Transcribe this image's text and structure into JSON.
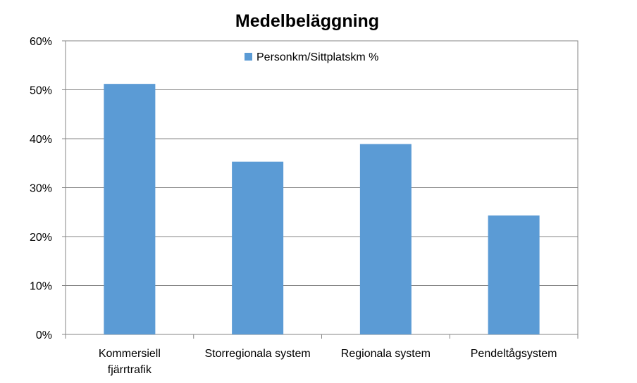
{
  "chart_data": {
    "type": "bar",
    "title": "Medelbeläggning",
    "categories": [
      "Kommersiell fjärrtrafik",
      "Storregionala system",
      "Regionala system",
      "Pendeltågsystem"
    ],
    "category_lines": [
      [
        "Kommersiell",
        "fjärrtrafik"
      ],
      [
        "Storregionala system"
      ],
      [
        "Regionala system"
      ],
      [
        "Pendeltågsystem"
      ]
    ],
    "series": [
      {
        "name": "Personkm/Sittplatskm %",
        "values": [
          51.2,
          35.3,
          38.9,
          24.3
        ],
        "color": "#5b9bd5"
      }
    ],
    "ylim": [
      0,
      60
    ],
    "yticks": [
      0,
      10,
      20,
      30,
      40,
      50,
      60
    ],
    "ytick_labels": [
      "0%",
      "10%",
      "20%",
      "30%",
      "40%",
      "50%",
      "60%"
    ],
    "xlabel": "",
    "ylabel": "",
    "grid": true,
    "legend_position": "top-center"
  }
}
